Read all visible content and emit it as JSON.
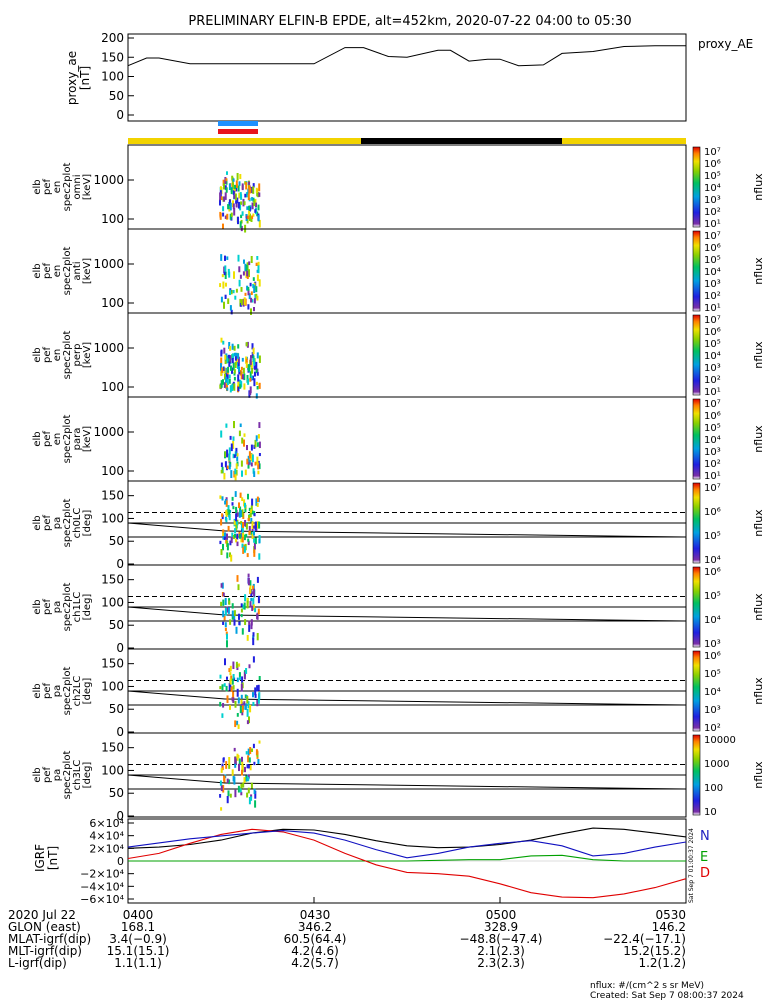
{
  "title": "PRELIMINARY ELFIN-B EPDE, alt=452km, 2020-07-22 04:00 to 05:30",
  "colors": {
    "state_day": "#f2d300",
    "state_night": "#000000",
    "bar_blue": "#1e90ff",
    "bar_red": "#e8141c",
    "grf_n": "#000000",
    "grf_e": "#00a000",
    "grf_d": "#e00000",
    "grf_blue": "#1010c0"
  },
  "proxy_ae": {
    "right_label": "proxy_AE",
    "ylabel": [
      "proxy_ae",
      "[nT]"
    ],
    "yticks": [
      "200",
      "150",
      "100",
      "50",
      "0"
    ]
  },
  "panels": [
    {
      "id": "omni",
      "ylabel": [
        "elb",
        "pef",
        "en",
        "spec2plot",
        "omni",
        "[keV]"
      ],
      "yticks": [
        "1000",
        "100"
      ],
      "cbar_ticks": [
        "10⁷",
        "10⁶",
        "10⁵",
        "10⁴",
        "10³",
        "10²",
        "10¹"
      ],
      "cbar_label": "nflux"
    },
    {
      "id": "anti",
      "ylabel": [
        "elb",
        "pef",
        "en",
        "spec2plot",
        "anti",
        "[keV]"
      ],
      "yticks": [
        "1000",
        "100"
      ],
      "cbar_ticks": [
        "10⁷",
        "10⁶",
        "10⁵",
        "10⁴",
        "10³",
        "10²",
        "10¹"
      ],
      "cbar_label": "nflux"
    },
    {
      "id": "perp",
      "ylabel": [
        "elb",
        "pef",
        "en",
        "spec2plot",
        "perp",
        "[keV]"
      ],
      "yticks": [
        "1000",
        "100"
      ],
      "cbar_ticks": [
        "10⁷",
        "10⁶",
        "10⁵",
        "10⁴",
        "10³",
        "10²",
        "10¹"
      ],
      "cbar_label": "nflux"
    },
    {
      "id": "para",
      "ylabel": [
        "elb",
        "pef",
        "en",
        "spec2plot",
        "para",
        "[keV]"
      ],
      "yticks": [
        "1000",
        "100"
      ],
      "cbar_ticks": [
        "10⁷",
        "10⁶",
        "10⁵",
        "10⁴",
        "10³",
        "10²",
        "10¹"
      ],
      "cbar_label": "nflux"
    },
    {
      "id": "ch0LC",
      "ylabel": [
        "elb",
        "pef",
        "pa",
        "spec2plot",
        "ch0LC",
        "[deg]"
      ],
      "yticks": [
        "150",
        "100",
        "50",
        "0"
      ],
      "cbar_ticks": [
        "10⁷",
        "10⁶",
        "10⁵",
        "10⁴"
      ],
      "cbar_label": "nflux"
    },
    {
      "id": "ch1LC",
      "ylabel": [
        "elb",
        "pef",
        "pa",
        "spec2plot",
        "ch1LC",
        "[deg]"
      ],
      "yticks": [
        "150",
        "100",
        "50",
        "0"
      ],
      "cbar_ticks": [
        "10⁶",
        "10⁵",
        "10⁴",
        "10³"
      ],
      "cbar_label": "nflux"
    },
    {
      "id": "ch2LC",
      "ylabel": [
        "elb",
        "pef",
        "pa",
        "spec2plot",
        "ch2LC",
        "[deg]"
      ],
      "yticks": [
        "150",
        "100",
        "50",
        "0"
      ],
      "cbar_ticks": [
        "10⁶",
        "10⁵",
        "10⁴",
        "10³",
        "10²"
      ],
      "cbar_label": "nflux"
    },
    {
      "id": "ch3LC",
      "ylabel": [
        "elb",
        "pef",
        "pa",
        "spec2plot",
        "ch3LC",
        "[deg]"
      ],
      "yticks": [
        "150",
        "100",
        "50",
        "0"
      ],
      "cbar_ticks": [
        "10000",
        "1000",
        "100",
        "10"
      ],
      "cbar_label": "nflux"
    }
  ],
  "grf": {
    "ylabel": [
      "IGRF",
      "[nT]"
    ],
    "yticks": [
      "6×10⁴",
      "4×10⁴",
      "2×10⁴",
      "0",
      "−2×10⁴",
      "−4×10⁴",
      "−6×10⁴"
    ],
    "legend": [
      "N",
      "E",
      "D"
    ],
    "side_text": "Sat Sep  7 01:00:37 2024"
  },
  "footer_rows": [
    {
      "label": "2020 Jul 22",
      "values": [
        "0400",
        "0430",
        "0500",
        "0530"
      ]
    },
    {
      "label": "GLON (east)",
      "values": [
        "168.1",
        "346.2",
        "328.9",
        "146.2"
      ]
    },
    {
      "label": "MLAT-igrf(dip)",
      "values": [
        "3.4(−0.9)",
        "60.5(64.4)",
        "−48.8(−47.4)",
        "−22.4(−17.1)"
      ]
    },
    {
      "label": "MLT-igrf(dip)",
      "values": [
        "15.1(15.1)",
        "4.2(4.6)",
        "2.1(2.3)",
        "15.2(15.2)"
      ]
    },
    {
      "label": "L-igrf(dip)",
      "values": [
        "1.1(1.1)",
        "4.2(5.7)",
        "2.3(2.3)",
        "1.2(1.2)"
      ]
    }
  ],
  "bottom_notes": [
    "nflux: #/(cm^2 s sr MeV)",
    "Created: Sat Sep  7 08:00:37 2024"
  ],
  "chart_data": [
    {
      "type": "line",
      "name": "proxy_AE",
      "x_unit": "UT hhmm",
      "xlim": [
        "04:00",
        "05:30"
      ],
      "ylim": [
        0,
        200
      ],
      "x": [
        "04:00",
        "04:03",
        "04:05",
        "04:10",
        "04:15",
        "04:17",
        "04:20",
        "04:25",
        "04:30",
        "04:35",
        "04:38",
        "04:42",
        "04:45",
        "04:50",
        "04:52",
        "04:55",
        "04:58",
        "05:00",
        "05:03",
        "05:07",
        "05:10",
        "05:15",
        "05:20",
        "05:25",
        "05:30"
      ],
      "values": [
        128,
        148,
        148,
        133,
        133,
        133,
        133,
        133,
        133,
        175,
        175,
        152,
        150,
        168,
        168,
        140,
        145,
        145,
        128,
        130,
        160,
        165,
        178,
        180,
        180
      ]
    },
    {
      "type": "line",
      "name": "IGRF",
      "x_unit": "UT hhmm",
      "xlim": [
        "04:00",
        "05:30"
      ],
      "ylim": [
        -60000,
        60000
      ],
      "series": [
        {
          "name": "N",
          "x": [
            0,
            5,
            10,
            15,
            20,
            25,
            30,
            35,
            40,
            45,
            50,
            55,
            60,
            65,
            70,
            75,
            80,
            85,
            90
          ],
          "values": [
            20000,
            22000,
            26000,
            33000,
            44000,
            50000,
            49000,
            42000,
            32000,
            24000,
            21000,
            22000,
            26000,
            33000,
            43000,
            52000,
            50000,
            44000,
            38000
          ]
        },
        {
          "name": "E",
          "x": [
            0,
            15,
            30,
            45,
            55,
            60,
            65,
            70,
            75,
            80,
            85,
            90
          ],
          "values": [
            0,
            0,
            0,
            0,
            2000,
            2000,
            8000,
            9000,
            2000,
            0,
            0,
            0
          ]
        },
        {
          "name": "D",
          "x": [
            0,
            5,
            10,
            15,
            20,
            25,
            30,
            35,
            40,
            45,
            50,
            55,
            60,
            65,
            70,
            75,
            80,
            85,
            90
          ],
          "values": [
            4000,
            12000,
            28000,
            42000,
            50000,
            46000,
            33000,
            12000,
            -6000,
            -18000,
            -20000,
            -24000,
            -36000,
            -50000,
            -57000,
            -58000,
            -52000,
            -42000,
            -28000
          ]
        },
        {
          "name": "",
          "x": [
            0,
            10,
            20,
            25,
            30,
            35,
            40,
            45,
            50,
            55,
            60,
            65,
            70,
            75,
            80,
            85,
            90
          ],
          "values": [
            22000,
            35000,
            44000,
            48000,
            44000,
            33000,
            18000,
            5000,
            12000,
            22000,
            28000,
            32000,
            24000,
            8000,
            12000,
            22000,
            30000
          ]
        }
      ]
    }
  ]
}
